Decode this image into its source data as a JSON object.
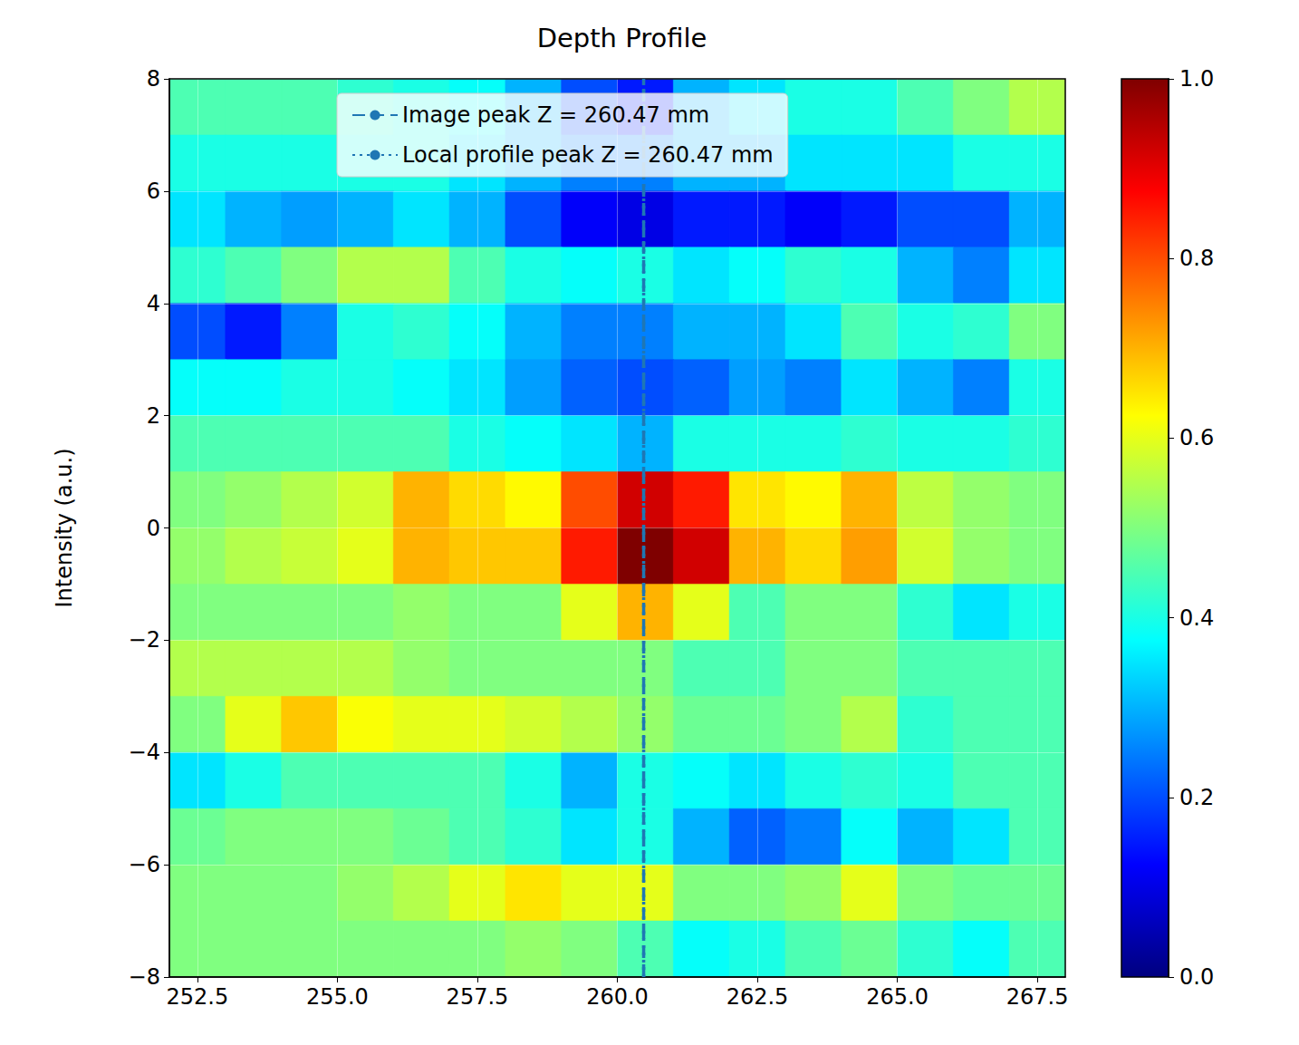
{
  "chart_data": {
    "type": "heatmap",
    "title": "Depth Profile",
    "ylabel": "Intensity (a.u.)",
    "x": [
      252.5,
      253.5,
      254.5,
      255.5,
      256.5,
      257.5,
      258.5,
      259.5,
      260.5,
      261.5,
      262.5,
      263.5,
      264.5,
      265.5,
      266.5,
      267.5
    ],
    "y": [
      7.5,
      6.5,
      5.5,
      4.5,
      3.5,
      2.5,
      1.5,
      0.5,
      -0.5,
      -1.5,
      -2.5,
      -3.5,
      -4.5,
      -5.5,
      -6.5,
      -7.5
    ],
    "values": [
      [
        0.45,
        0.45,
        0.45,
        0.42,
        0.4,
        0.38,
        0.3,
        0.2,
        0.15,
        0.3,
        0.35,
        0.4,
        0.4,
        0.45,
        0.5,
        0.55
      ],
      [
        0.4,
        0.4,
        0.4,
        0.4,
        0.4,
        0.35,
        0.3,
        0.25,
        0.25,
        0.3,
        0.3,
        0.35,
        0.35,
        0.35,
        0.4,
        0.4
      ],
      [
        0.35,
        0.3,
        0.28,
        0.3,
        0.35,
        0.3,
        0.2,
        0.12,
        0.1,
        0.15,
        0.15,
        0.12,
        0.15,
        0.2,
        0.2,
        0.3
      ],
      [
        0.42,
        0.45,
        0.5,
        0.55,
        0.55,
        0.45,
        0.4,
        0.38,
        0.4,
        0.35,
        0.38,
        0.42,
        0.4,
        0.3,
        0.25,
        0.35
      ],
      [
        0.2,
        0.15,
        0.25,
        0.4,
        0.42,
        0.38,
        0.3,
        0.25,
        0.25,
        0.3,
        0.3,
        0.35,
        0.45,
        0.4,
        0.42,
        0.5
      ],
      [
        0.38,
        0.38,
        0.4,
        0.4,
        0.38,
        0.35,
        0.28,
        0.22,
        0.2,
        0.22,
        0.28,
        0.25,
        0.35,
        0.3,
        0.25,
        0.4
      ],
      [
        0.45,
        0.45,
        0.45,
        0.45,
        0.45,
        0.4,
        0.38,
        0.35,
        0.3,
        0.4,
        0.4,
        0.4,
        0.42,
        0.4,
        0.4,
        0.42
      ],
      [
        0.5,
        0.52,
        0.55,
        0.58,
        0.7,
        0.66,
        0.63,
        0.8,
        0.92,
        0.85,
        0.65,
        0.63,
        0.7,
        0.56,
        0.52,
        0.5
      ],
      [
        0.52,
        0.55,
        0.57,
        0.6,
        0.7,
        0.68,
        0.68,
        0.85,
        1.0,
        0.92,
        0.7,
        0.66,
        0.72,
        0.58,
        0.52,
        0.5
      ],
      [
        0.5,
        0.5,
        0.5,
        0.5,
        0.52,
        0.5,
        0.5,
        0.6,
        0.7,
        0.6,
        0.45,
        0.5,
        0.5,
        0.42,
        0.35,
        0.4
      ],
      [
        0.55,
        0.55,
        0.55,
        0.55,
        0.52,
        0.5,
        0.5,
        0.5,
        0.5,
        0.45,
        0.45,
        0.5,
        0.5,
        0.45,
        0.45,
        0.45
      ],
      [
        0.5,
        0.6,
        0.68,
        0.62,
        0.6,
        0.6,
        0.58,
        0.55,
        0.52,
        0.48,
        0.48,
        0.5,
        0.55,
        0.42,
        0.45,
        0.45
      ],
      [
        0.35,
        0.4,
        0.45,
        0.45,
        0.45,
        0.45,
        0.4,
        0.3,
        0.4,
        0.38,
        0.35,
        0.4,
        0.42,
        0.4,
        0.45,
        0.45
      ],
      [
        0.48,
        0.5,
        0.5,
        0.5,
        0.48,
        0.45,
        0.42,
        0.35,
        0.4,
        0.3,
        0.22,
        0.25,
        0.38,
        0.3,
        0.35,
        0.45
      ],
      [
        0.5,
        0.5,
        0.5,
        0.52,
        0.55,
        0.6,
        0.65,
        0.6,
        0.6,
        0.5,
        0.5,
        0.52,
        0.6,
        0.5,
        0.48,
        0.48
      ],
      [
        0.5,
        0.5,
        0.5,
        0.5,
        0.5,
        0.5,
        0.52,
        0.5,
        0.45,
        0.38,
        0.4,
        0.45,
        0.48,
        0.42,
        0.38,
        0.45
      ]
    ],
    "xlim": [
      252,
      268
    ],
    "ylim": [
      -8,
      8
    ],
    "xticks": [
      252.5,
      {
        "value": 255,
        "label": "255.0"
      },
      257.5,
      {
        "value": 260,
        "label": "260.0"
      },
      262.5,
      {
        "value": 265,
        "label": "265.0"
      },
      267.5
    ],
    "yticks": [
      {
        "value": -8,
        "label": "−8"
      },
      {
        "value": -6,
        "label": "−6"
      },
      {
        "value": -4,
        "label": "−4"
      },
      {
        "value": -2,
        "label": "−2"
      },
      0,
      2,
      4,
      6,
      8
    ],
    "colorbar_lim": [
      0,
      1
    ],
    "colorbar_ticks": [
      {
        "value": 0,
        "label": "0.0"
      },
      0.2,
      0.4,
      0.6,
      0.8,
      {
        "value": 1,
        "label": "1.0"
      }
    ],
    "grid": true,
    "legend": "upper center",
    "lines": [
      {
        "name": "Image peak Z = 260.47 mm",
        "x": 260.47,
        "line_style": "dashed",
        "color": "#1f77b4"
      },
      {
        "name": "Local profile peak Z = 260.47 mm",
        "x": 260.47,
        "line_style": "dotted",
        "color": "#1f77b4"
      }
    ]
  }
}
